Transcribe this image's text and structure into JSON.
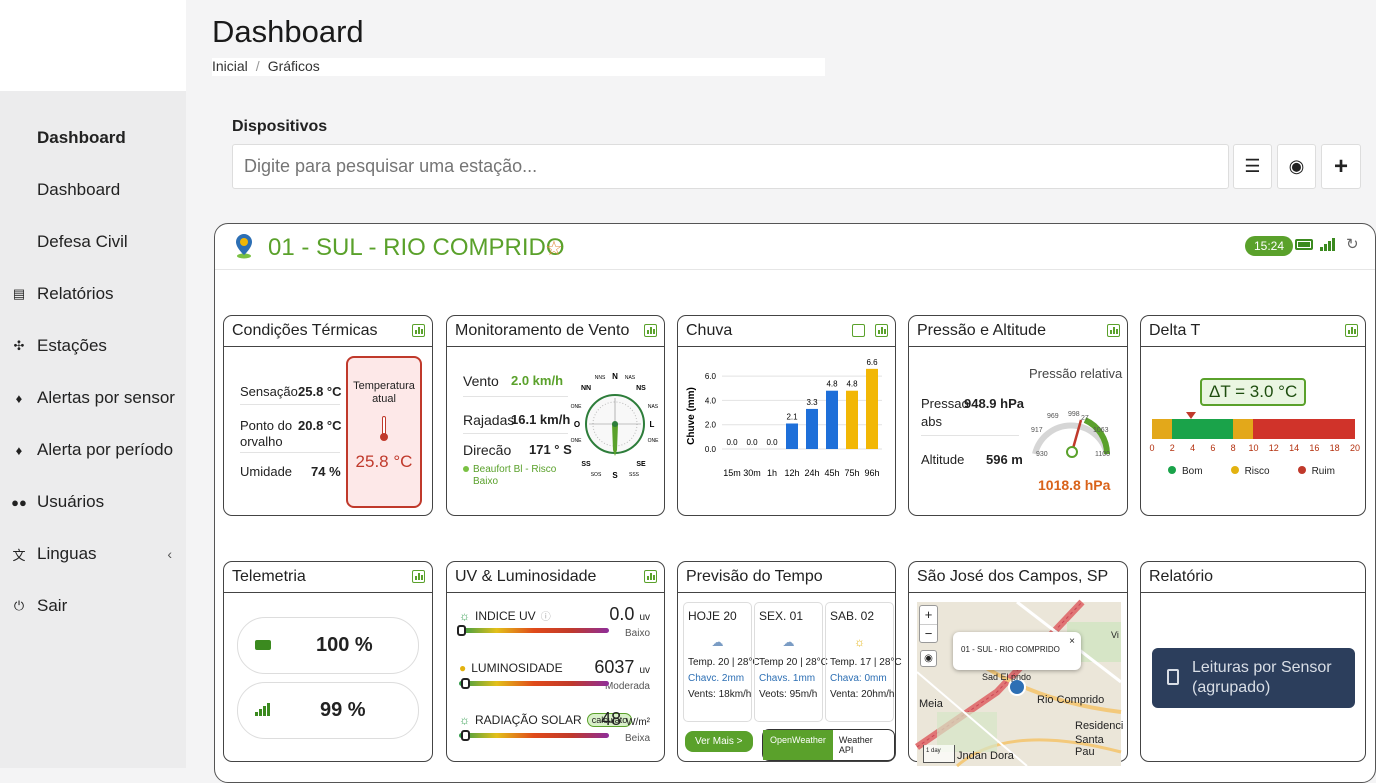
{
  "sidebar": {
    "items": [
      {
        "label": "Dashboard",
        "icon": "dashboard-icon"
      },
      {
        "label": "Dashboard",
        "icon": "dashboard-icon"
      },
      {
        "label": "Defesa Civil",
        "icon": "dashboard-icon"
      },
      {
        "label": "Relatórios",
        "icon": "report-icon"
      },
      {
        "label": "Estações",
        "icon": "antenna-icon"
      },
      {
        "label": "Alertas por sensor",
        "icon": "bell-icon"
      },
      {
        "label": "Alerta por período",
        "icon": "bell-icon"
      },
      {
        "label": "Usuários",
        "icon": "users-icon"
      },
      {
        "label": "Linguas",
        "icon": "translate-icon"
      },
      {
        "label": "Sair",
        "icon": "power-icon"
      }
    ]
  },
  "header": {
    "title": "Dashboard",
    "breadcrumb": [
      "Inicial",
      "Gráficos"
    ]
  },
  "devices": {
    "label": "Dispositivos",
    "search_placeholder": "Digite para pesquisar uma estação..."
  },
  "station": {
    "name": "01 - SUL - RIO COMPRIDO",
    "time": "15:24",
    "accent": "#5aa12b"
  },
  "thermal": {
    "title": "Condições Térmicas",
    "sensacao_label": "Sensação",
    "sensacao": "25.8 °C",
    "orvalho_label1": "Ponto do",
    "orvalho_label2": "orvalho",
    "orvalho": "20.8 °C",
    "umidade_label": "Umidade",
    "umidade": "74 %",
    "box_label1": "Temperatura",
    "box_label2": "atual",
    "box_value": "25.8 °C"
  },
  "wind": {
    "title": "Monitoramento de Vento",
    "vento_label": "Vento",
    "vento": "2.0 km/h",
    "rajadas_label": "Rajadas",
    "rajadas": "16.1 km/h",
    "direcao_label": "Direcão",
    "direcao": "171 ° S",
    "beaufort1": "Beaufort Bl - Risco",
    "beaufort2": "Baixo",
    "compass": {
      "n": "N",
      "s": "S",
      "l": "L",
      "o": "O",
      "nn": "NN",
      "ns": "NS",
      "se": "SE",
      "ss": "SS",
      "nns": "NNS",
      "nas": "NAS",
      "one": "ONE",
      "ose": "OSE",
      "sos": "SOS",
      "sss": "SSS"
    }
  },
  "rain": {
    "title": "Chuva",
    "ylabel": "Chuve (mm)"
  },
  "chart_data": {
    "type": "bar",
    "categories": [
      "15m",
      "30m",
      "1h",
      "12h",
      "24h",
      "45h",
      "75h",
      "96h"
    ],
    "values": [
      0.0,
      0.0,
      0.0,
      2.1,
      3.3,
      4.8,
      4.8,
      6.6
    ],
    "value_labels": [
      "0.0",
      "0.0",
      "0.0",
      "2.1",
      "3.3",
      "4.8",
      "4.8",
      "6.6"
    ],
    "colors": [
      "#1e6fd9",
      "#1e6fd9",
      "#1e6fd9",
      "#1e6fd9",
      "#1e6fd9",
      "#1e6fd9",
      "#f2b705",
      "#f2b705"
    ],
    "ylabel": "Chuve (mm)",
    "yticks": [
      "0.0",
      "2.0",
      "4.0",
      "6.0"
    ],
    "ylim": [
      0,
      7
    ]
  },
  "pressure": {
    "title": "Pressão e Altitude",
    "rel_label": "Pressão relativa",
    "abs_label": "Pressao",
    "abs_label2": "abs",
    "abs": "948.9 hPa",
    "alt_label": "Altitude",
    "alt": "596 m",
    "value": "1018.8 hPa",
    "g930": "930",
    "g917": "917",
    "g969": "969",
    "g998": "998",
    "g27": "27",
    "g1063": "1063",
    "g1100": "1100"
  },
  "delta": {
    "title": "Delta T",
    "value": "ΔT = 3.0 °C",
    "ticks": [
      "0",
      "2",
      "4",
      "6",
      "8",
      "10",
      "12",
      "14",
      "16",
      "18",
      "20"
    ],
    "legend": [
      {
        "label": "Bom",
        "color": "#1aa34a"
      },
      {
        "label": "Risco",
        "color": "#e3b20f"
      },
      {
        "label": "Ruim",
        "color": "#c0392b"
      }
    ]
  },
  "telemetry": {
    "title": "Telemetria",
    "battery": "100 %",
    "signal": "99 %"
  },
  "uv": {
    "title": "UV & Luminosidade",
    "uv_label": "INDICE UV",
    "uv_value": "0.0",
    "uv_unit": "uv",
    "uv_sub": "Baixo",
    "lum_label": "LUMINOSIDADE",
    "lum_value": "6037",
    "lum_unit": "uv",
    "lum_sub": "Moderada",
    "rad_label": "RADIAÇÃO SOLAR",
    "rad_badge": "calculato",
    "rad_value": "48",
    "rad_unit": "W/m²",
    "rad_sub": "Beixa"
  },
  "forecast": {
    "title": "Previsão do Tempo",
    "days": [
      {
        "day": "HOJE 20",
        "temp": "Temp. 20 | 28°C",
        "chuva": "Chavc. 2mm",
        "vento": "Vents: 18km/h"
      },
      {
        "day": "SEX. 01",
        "temp": "Temp 20 | 28°C",
        "chuva": "Chavs. 1mm",
        "vento": "Veots: 95m/h"
      },
      {
        "day": "SAB. 02",
        "temp": "Temp. 17 | 28°C",
        "chuva": "Chava: 0mm",
        "vento": "Venta: 20hm/h"
      }
    ],
    "more": "Ver Mais >",
    "src1": "OpenWeather",
    "src2": "Weather API"
  },
  "mapcard": {
    "title": "São José dos Campos, SP",
    "popup": "01 - SUL - RIO COMPRIDO",
    "lbl_rio": "Rio Comprido",
    "lbl_meia": "Meia",
    "lbl_res": "Residenci",
    "lbl_santa": "Santa Pau",
    "lbl_dora": "Jndan Dora",
    "lbl_sad": "Sad El pndo",
    "lbl_vi": "Vi",
    "zoom_in": "+",
    "zoom_out": "−",
    "scale": "1 day"
  },
  "report": {
    "title": "Relatório",
    "button1": "Leituras por Sensor",
    "button2": "(agrupado)"
  }
}
